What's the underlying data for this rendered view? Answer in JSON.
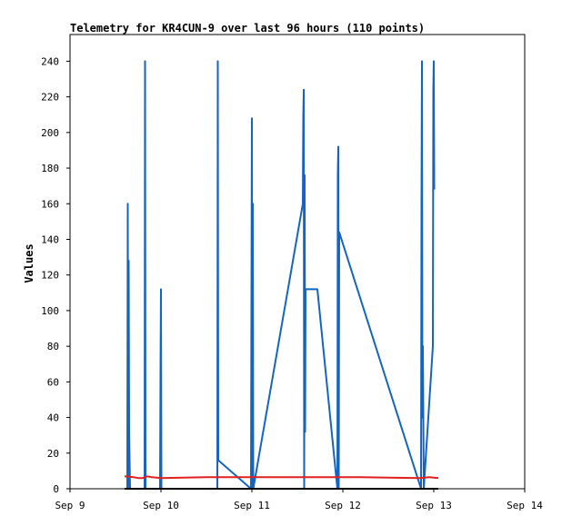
{
  "chart_data": {
    "type": "line",
    "title": "Telemetry for KR4CUN-9 over last 96 hours (110 points)",
    "xlabel": "",
    "ylabel": "Values",
    "x_tick_labels": [
      "Sep 9",
      "Sep 10",
      "Sep 11",
      "Sep 12",
      "Sep 13",
      "Sep 14"
    ],
    "x_unit": "days",
    "xlim": [
      9,
      14
    ],
    "ylim": [
      0,
      255
    ],
    "y_ticks": [
      0,
      20,
      40,
      60,
      80,
      100,
      120,
      140,
      160,
      180,
      200,
      220,
      240
    ],
    "grid": false,
    "legend": "none",
    "series": [
      {
        "color": "#1565c0",
        "x": [
          9.63,
          9.635,
          9.64,
          9.645,
          9.65,
          9.66,
          9.82,
          9.825,
          9.83,
          9.99,
          9.995,
          10.0,
          10.005,
          10.62,
          10.625,
          10.63,
          10.99,
          10.995,
          11.0,
          11.005,
          11.01,
          11.015,
          11.56,
          11.565,
          11.57,
          11.575,
          11.58,
          11.585,
          11.59,
          11.72,
          11.94,
          11.945,
          11.95,
          11.955,
          11.96,
          12.86,
          12.865,
          12.87,
          12.875,
          12.88,
          12.89,
          12.99,
          12.995,
          13.0,
          13.005
        ],
        "values": [
          0,
          160,
          0,
          128,
          32,
          0,
          0,
          240,
          0,
          0,
          64,
          112,
          0,
          0,
          240,
          16,
          0,
          104,
          208,
          0,
          160,
          0,
          160,
          208,
          224,
          0,
          176,
          32,
          112,
          112,
          0,
          176,
          192,
          0,
          144,
          0,
          160,
          240,
          40,
          80,
          0,
          80,
          224,
          240,
          168
        ]
      },
      {
        "color": "#e02020",
        "x": [
          9.6,
          9.7,
          9.75,
          9.8,
          9.85,
          9.9,
          10.0,
          10.5,
          11.0,
          11.5,
          12.0,
          12.2,
          12.5,
          12.85,
          12.95,
          13.05
        ],
        "values": [
          7,
          6.5,
          6,
          6,
          7,
          6.5,
          6,
          6.5,
          6.5,
          6.5,
          6.5,
          6.5,
          6.2,
          6,
          6.5,
          6
        ]
      },
      {
        "color": "#000000",
        "x": [
          9.6,
          13.05
        ],
        "values": [
          0,
          0
        ]
      }
    ]
  }
}
